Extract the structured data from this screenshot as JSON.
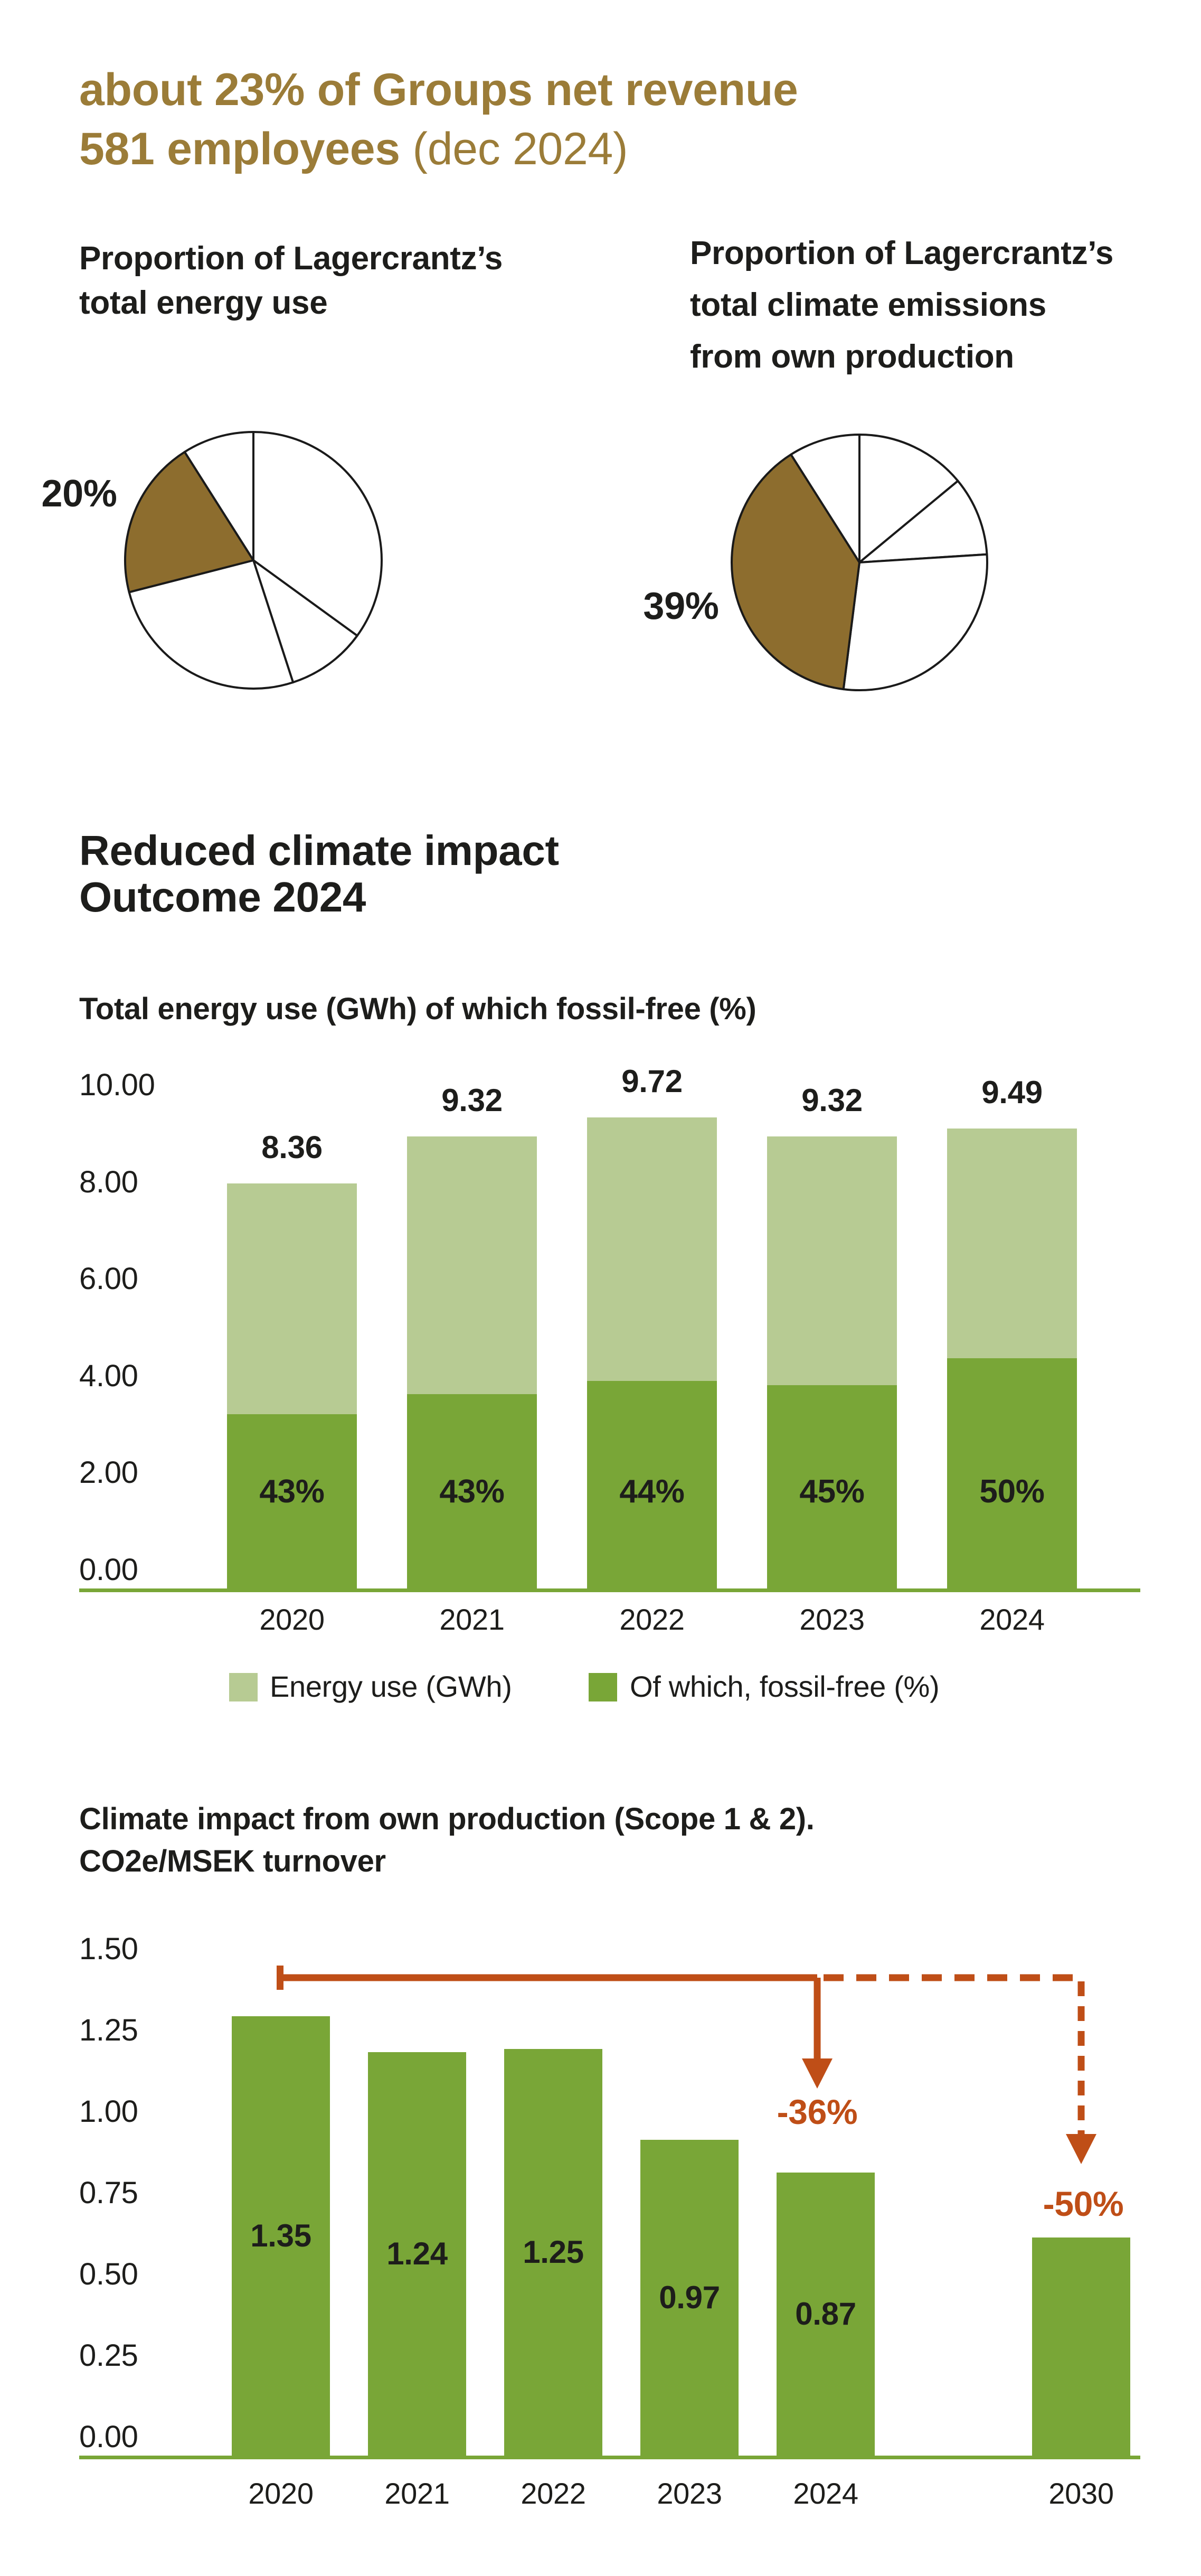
{
  "colors": {
    "gold": "#9b7c38",
    "text": "#1d1d1b",
    "outline": "#1a1a1a",
    "brown": "#8d6d2e",
    "light_green": "#b7cb93",
    "dark_green": "#79a637",
    "red": "#bf4e17",
    "white": "#ffffff"
  },
  "header": {
    "line1": "about 23% of Groups net revenue",
    "line2_bold": "581 employees",
    "line2_light": " (dec 2024)"
  },
  "pies": [
    {
      "title_lines": [
        "Proportion of Lagercrantz’s",
        "total energy use"
      ],
      "label": "20%",
      "highlight_value": 20,
      "slices": [
        {
          "pct": 35,
          "color": "white"
        },
        {
          "pct": 10,
          "color": "white"
        },
        {
          "pct": 26,
          "color": "white"
        },
        {
          "pct": 20,
          "color": "brown"
        },
        {
          "pct": 9,
          "color": "white"
        }
      ]
    },
    {
      "title_lines": [
        "Proportion of Lagercrantz’s",
        "total climate emissions",
        "from own production"
      ],
      "label": "39%",
      "highlight_value": 39,
      "slices": [
        {
          "pct": 14,
          "color": "white"
        },
        {
          "pct": 10,
          "color": "white"
        },
        {
          "pct": 28,
          "color": "white"
        },
        {
          "pct": 39,
          "color": "brown"
        },
        {
          "pct": 9,
          "color": "white"
        }
      ]
    }
  ],
  "section": {
    "title_lines": [
      "Reduced climate impact",
      "Outcome 2024"
    ]
  },
  "chart_data": [
    {
      "type": "bar",
      "stacked": true,
      "title": "Total energy use (GWh) of which fossil-free (%)",
      "categories": [
        "2020",
        "2021",
        "2022",
        "2023",
        "2024"
      ],
      "series": [
        {
          "name": "Energy use (GWh)",
          "values": [
            8.36,
            9.32,
            9.72,
            9.32,
            9.49
          ]
        },
        {
          "name": "Of which, fossil-free (%)",
          "values": [
            43,
            43,
            44,
            45,
            50
          ]
        }
      ],
      "value_labels": [
        "8.36",
        "9.32",
        "9.72",
        "9.32",
        "9.49"
      ],
      "pct_labels": [
        "43%",
        "43%",
        "44%",
        "45%",
        "50%"
      ],
      "y_ticks": [
        "10.00",
        "8.00",
        "6.00",
        "4.00",
        "2.00",
        "0.00"
      ],
      "ylim": [
        0,
        10
      ],
      "grid": false,
      "legend_position": "bottom",
      "legend": [
        {
          "label": "Energy use (GWh)",
          "color": "light_green"
        },
        {
          "label": "Of which, fossil-free (%)",
          "color": "dark_green"
        }
      ]
    },
    {
      "type": "bar",
      "title": "Climate impact from own production (Scope 1 & 2).",
      "subtitle": "CO2e/MSEK turnover",
      "categories": [
        "2020",
        "2021",
        "2022",
        "2023",
        "2024",
        "2030"
      ],
      "values": [
        1.35,
        1.24,
        1.25,
        0.97,
        0.87,
        0.67
      ],
      "bar_labels": [
        "1.35",
        "1.24",
        "1.25",
        "0.97",
        "0.87",
        ""
      ],
      "y_ticks": [
        "1.50",
        "1.25",
        "1.00",
        "0.75",
        "0.50",
        "0.25",
        "0.00"
      ],
      "ylim": [
        0,
        1.5
      ],
      "grid": false,
      "annotations": [
        {
          "text": "-36%",
          "target": "2024",
          "style": "solid"
        },
        {
          "text": "-50%",
          "target": "2030",
          "style": "dashed"
        }
      ]
    }
  ]
}
